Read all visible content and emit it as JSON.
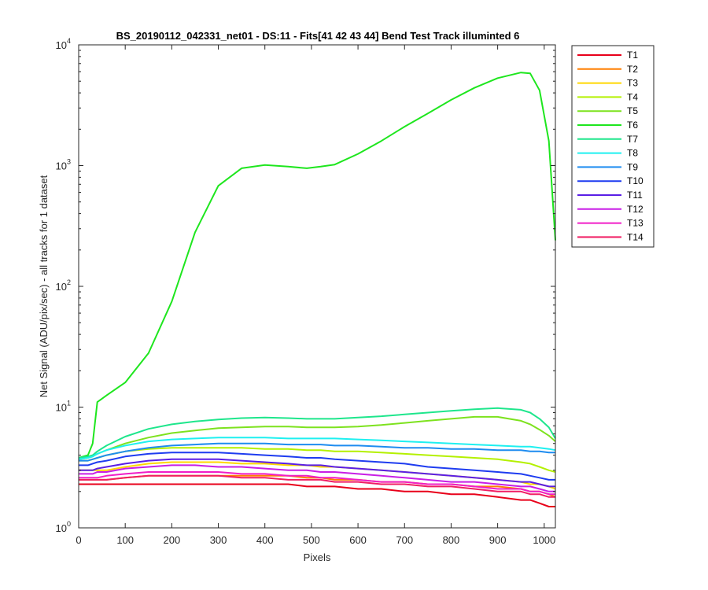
{
  "chart_data": {
    "type": "line",
    "title": "BS_20190112_042331_net01 - DS:11 - Fits[41  42  43  44]   Bend Test        Track illuminted 6",
    "xlabel": "Pixels",
    "ylabel": "Net Signal (ADU/pix/sec) - all tracks for 1 dataset",
    "xlim": [
      0,
      1024
    ],
    "ylim": [
      1,
      10000
    ],
    "yscale": "log",
    "xticks": [
      0,
      100,
      200,
      300,
      400,
      500,
      600,
      700,
      800,
      900,
      1000
    ],
    "yticks": [
      {
        "base": "10",
        "exp": "0",
        "value": 1
      },
      {
        "base": "10",
        "exp": "1",
        "value": 10
      },
      {
        "base": "10",
        "exp": "2",
        "value": 100
      },
      {
        "base": "10",
        "exp": "3",
        "value": 1000
      },
      {
        "base": "10",
        "exp": "4",
        "value": 10000
      }
    ],
    "grid": false,
    "legend_position": "outside-right",
    "x": [
      0,
      20,
      30,
      40,
      60,
      100,
      150,
      200,
      250,
      300,
      350,
      400,
      450,
      490,
      520,
      550,
      600,
      650,
      700,
      750,
      800,
      850,
      900,
      950,
      970,
      990,
      1010,
      1024
    ],
    "series": [
      {
        "name": "T1",
        "color": "#e8001a",
        "values": [
          2.3,
          2.3,
          2.3,
          2.3,
          2.3,
          2.3,
          2.3,
          2.3,
          2.3,
          2.3,
          2.3,
          2.3,
          2.3,
          2.2,
          2.2,
          2.2,
          2.1,
          2.1,
          2.0,
          2.0,
          1.9,
          1.9,
          1.8,
          1.7,
          1.7,
          1.6,
          1.5,
          1.5
        ]
      },
      {
        "name": "T2",
        "color": "#ff7f00",
        "values": [
          2.5,
          2.5,
          2.5,
          2.5,
          2.5,
          2.6,
          2.7,
          2.7,
          2.7,
          2.7,
          2.7,
          2.7,
          2.7,
          2.6,
          2.6,
          2.5,
          2.5,
          2.4,
          2.4,
          2.3,
          2.3,
          2.2,
          2.2,
          2.1,
          2.0,
          2.0,
          1.9,
          1.8
        ]
      },
      {
        "name": "T3",
        "color": "#ffd700",
        "values": [
          3.0,
          3.0,
          3.0,
          3.0,
          3.0,
          3.2,
          3.4,
          3.5,
          3.5,
          3.5,
          3.4,
          3.4,
          3.3,
          3.3,
          3.2,
          3.2,
          3.1,
          3.0,
          2.9,
          2.8,
          2.7,
          2.6,
          2.5,
          2.4,
          2.3,
          2.3,
          2.2,
          2.1
        ]
      },
      {
        "name": "T4",
        "color": "#b4f000",
        "values": [
          3.6,
          3.6,
          3.7,
          3.8,
          4.0,
          4.3,
          4.5,
          4.6,
          4.6,
          4.6,
          4.6,
          4.5,
          4.5,
          4.4,
          4.4,
          4.3,
          4.3,
          4.2,
          4.1,
          4.0,
          3.9,
          3.8,
          3.7,
          3.5,
          3.4,
          3.2,
          3.0,
          2.9
        ]
      },
      {
        "name": "T5",
        "color": "#7de21e",
        "values": [
          3.7,
          3.8,
          3.9,
          4.1,
          4.4,
          5.0,
          5.6,
          6.1,
          6.4,
          6.7,
          6.8,
          6.9,
          6.9,
          6.8,
          6.8,
          6.8,
          6.9,
          7.1,
          7.4,
          7.7,
          8.0,
          8.3,
          8.3,
          7.7,
          7.2,
          6.5,
          5.8,
          5.2
        ]
      },
      {
        "name": "T6",
        "color": "#1ee61e",
        "values": [
          3.8,
          4.0,
          5.0,
          11.0,
          12.5,
          16.0,
          28.0,
          75.0,
          280.0,
          680.0,
          950.0,
          1010.0,
          980.0,
          950.0,
          980.0,
          1020.0,
          1250.0,
          1600.0,
          2100.0,
          2700.0,
          3500.0,
          4400.0,
          5300.0,
          5900.0,
          5800.0,
          4200.0,
          1600.0,
          240.0
        ]
      },
      {
        "name": "T7",
        "color": "#1ee68c",
        "values": [
          3.8,
          3.9,
          4.0,
          4.3,
          4.8,
          5.7,
          6.6,
          7.2,
          7.6,
          7.9,
          8.1,
          8.2,
          8.1,
          8.0,
          8.0,
          8.0,
          8.2,
          8.4,
          8.7,
          9.0,
          9.3,
          9.6,
          9.8,
          9.5,
          9.0,
          8.0,
          6.8,
          5.5
        ]
      },
      {
        "name": "T8",
        "color": "#1ef0f0",
        "values": [
          3.7,
          3.8,
          3.9,
          4.1,
          4.4,
          4.8,
          5.2,
          5.4,
          5.5,
          5.6,
          5.6,
          5.6,
          5.5,
          5.5,
          5.5,
          5.5,
          5.4,
          5.3,
          5.2,
          5.1,
          5.0,
          4.9,
          4.8,
          4.7,
          4.7,
          4.6,
          4.5,
          4.4
        ]
      },
      {
        "name": "T9",
        "color": "#1e8cf0",
        "values": [
          3.6,
          3.6,
          3.7,
          3.8,
          4.0,
          4.3,
          4.6,
          4.8,
          4.9,
          5.0,
          5.0,
          5.0,
          4.9,
          4.9,
          4.9,
          4.8,
          4.8,
          4.7,
          4.6,
          4.6,
          4.5,
          4.5,
          4.4,
          4.4,
          4.3,
          4.3,
          4.2,
          4.2
        ]
      },
      {
        "name": "T10",
        "color": "#1e3cf0",
        "values": [
          3.3,
          3.3,
          3.4,
          3.5,
          3.6,
          3.9,
          4.1,
          4.2,
          4.2,
          4.2,
          4.1,
          4.0,
          3.9,
          3.8,
          3.8,
          3.7,
          3.6,
          3.5,
          3.4,
          3.2,
          3.1,
          3.0,
          2.9,
          2.8,
          2.7,
          2.6,
          2.5,
          2.5
        ]
      },
      {
        "name": "T11",
        "color": "#5a1ee6",
        "values": [
          3.0,
          3.0,
          3.0,
          3.1,
          3.2,
          3.4,
          3.6,
          3.7,
          3.7,
          3.7,
          3.6,
          3.5,
          3.4,
          3.3,
          3.3,
          3.2,
          3.1,
          3.0,
          2.9,
          2.8,
          2.7,
          2.6,
          2.5,
          2.4,
          2.4,
          2.3,
          2.2,
          2.2
        ]
      },
      {
        "name": "T12",
        "color": "#c81ee6",
        "values": [
          2.8,
          2.8,
          2.8,
          2.9,
          2.9,
          3.1,
          3.2,
          3.3,
          3.3,
          3.2,
          3.2,
          3.1,
          3.0,
          3.0,
          2.9,
          2.9,
          2.8,
          2.7,
          2.6,
          2.5,
          2.4,
          2.4,
          2.3,
          2.2,
          2.2,
          2.1,
          2.0,
          2.0
        ]
      },
      {
        "name": "T13",
        "color": "#f01ec8",
        "values": [
          2.6,
          2.6,
          2.6,
          2.6,
          2.7,
          2.8,
          2.9,
          2.9,
          2.9,
          2.9,
          2.8,
          2.8,
          2.7,
          2.7,
          2.6,
          2.6,
          2.5,
          2.4,
          2.4,
          2.3,
          2.3,
          2.2,
          2.1,
          2.1,
          2.0,
          2.0,
          1.9,
          1.9
        ]
      },
      {
        "name": "T14",
        "color": "#f01e64",
        "values": [
          2.5,
          2.5,
          2.5,
          2.5,
          2.5,
          2.6,
          2.7,
          2.7,
          2.7,
          2.7,
          2.6,
          2.6,
          2.5,
          2.5,
          2.5,
          2.4,
          2.4,
          2.3,
          2.3,
          2.2,
          2.2,
          2.1,
          2.0,
          2.0,
          1.9,
          1.9,
          1.8,
          1.8
        ]
      }
    ]
  }
}
